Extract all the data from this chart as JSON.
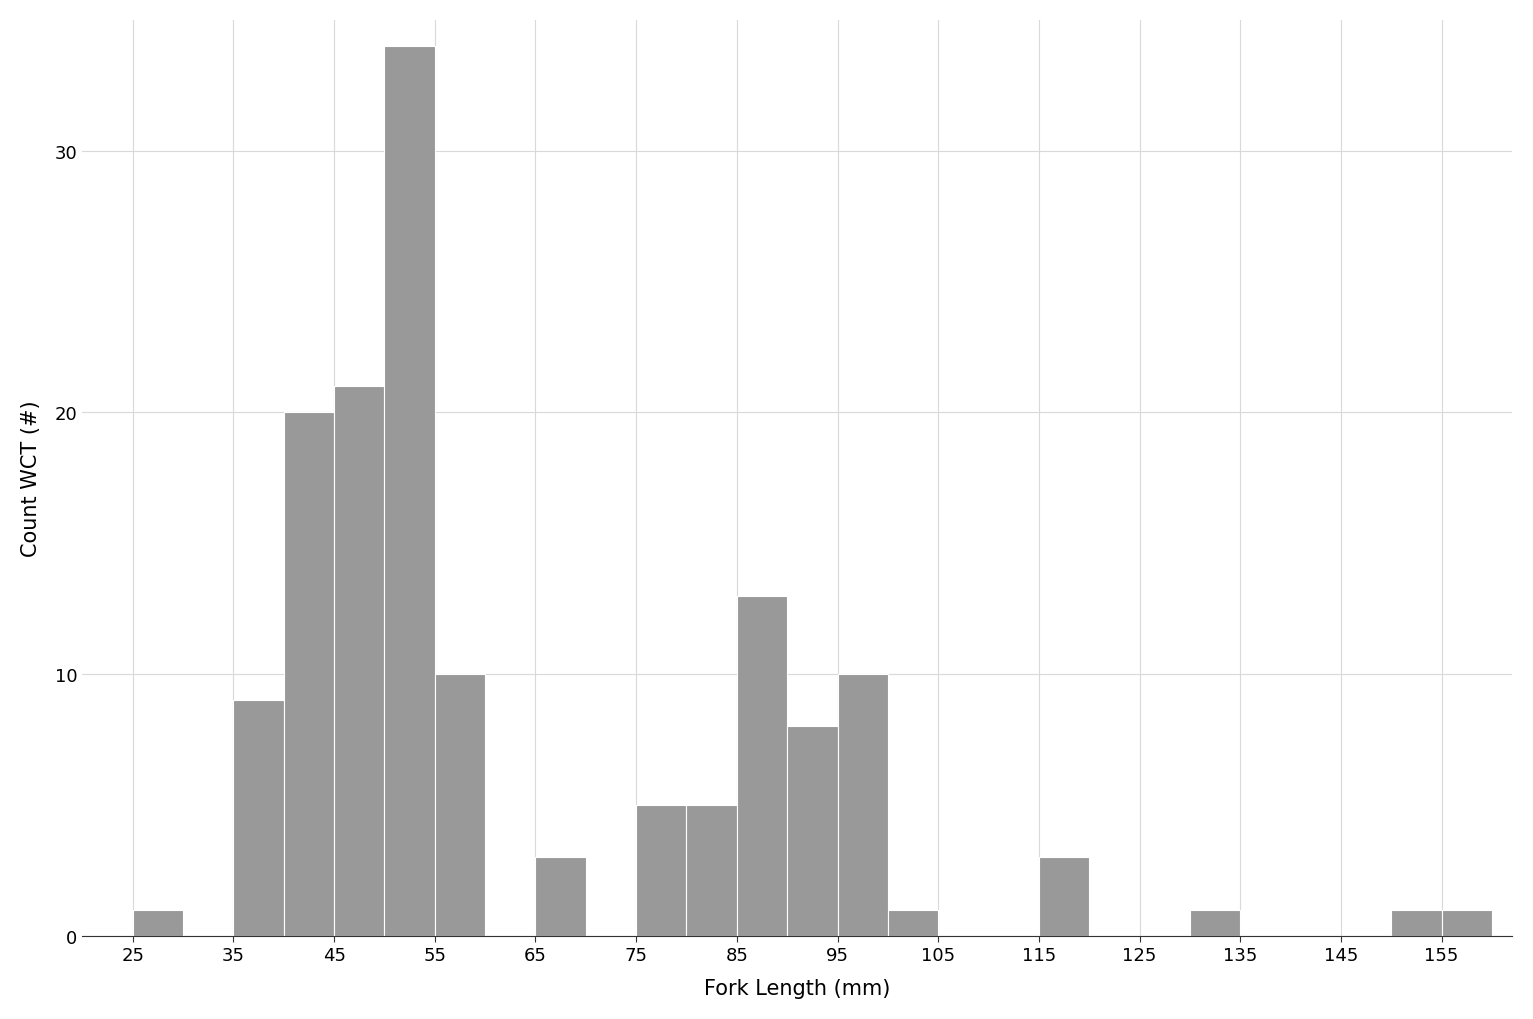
{
  "bin_left": [
    25,
    30,
    35,
    40,
    45,
    50,
    55,
    60,
    65,
    70,
    75,
    80,
    85,
    90,
    95,
    100,
    110,
    115,
    120,
    130,
    135,
    145,
    150,
    155
  ],
  "counts": [
    1,
    0,
    9,
    20,
    21,
    34,
    10,
    0,
    3,
    0,
    5,
    5,
    13,
    8,
    10,
    1,
    0,
    3,
    0,
    1,
    0,
    0,
    1,
    1
  ],
  "bin_width": 5,
  "bar_color": "#999999",
  "bar_edgecolor": "#ffffff",
  "background_color": "#ffffff",
  "grid_color": "#d9d9d9",
  "xlabel": "Fork Length (mm)",
  "ylabel": "Count WCT (#)",
  "xlim": [
    20,
    162
  ],
  "ylim": [
    0,
    35
  ],
  "xticks": [
    25,
    35,
    45,
    55,
    65,
    75,
    85,
    95,
    105,
    115,
    125,
    135,
    145,
    155
  ],
  "yticks": [
    0,
    10,
    20,
    30
  ],
  "xlabel_fontsize": 15,
  "ylabel_fontsize": 15,
  "tick_fontsize": 13,
  "figsize": [
    15.33,
    10.2
  ],
  "dpi": 100
}
